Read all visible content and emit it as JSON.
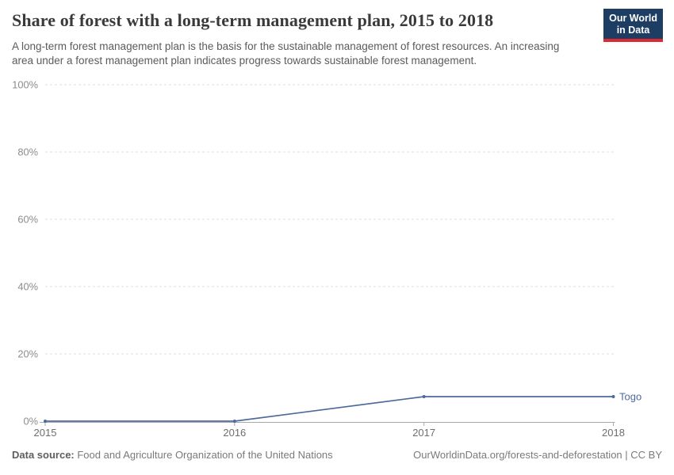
{
  "header": {
    "title": "Share of forest with a long-term management plan, 2015 to 2018",
    "subtitle": "A long-term forest management plan is the basis for the sustainable management of forest resources. An increasing area under a forest management plan indicates progress towards sustainable forest management.",
    "logo": {
      "line1": "Our World",
      "line2": "in Data",
      "bg_color": "#1d3d63",
      "accent_color": "#dc2a32",
      "text_color": "#ffffff"
    }
  },
  "chart_data": {
    "type": "line",
    "title": "Share of forest with a long-term management plan, 2015 to 2018",
    "x": [
      2015,
      2016,
      2017,
      2018
    ],
    "series": [
      {
        "name": "Togo",
        "values": [
          0,
          0,
          7.3,
          7.3
        ],
        "color": "#4c6a9c"
      }
    ],
    "xlabel": "",
    "ylabel": "",
    "ylim": [
      0,
      100
    ],
    "yticks": [
      0,
      20,
      40,
      60,
      80,
      100
    ],
    "ytick_suffix": "%",
    "xtick_labels": [
      "2015",
      "2016",
      "2017",
      "2018"
    ],
    "grid": "horizontal-dashed",
    "legend": "end-of-line-label"
  },
  "footer": {
    "datasource_label": "Data source:",
    "datasource_value": " Food and Agriculture Organization of the United Nations",
    "link": "OurWorldinData.org/forests-and-deforestation",
    "separator": " | ",
    "license": "CC BY"
  }
}
